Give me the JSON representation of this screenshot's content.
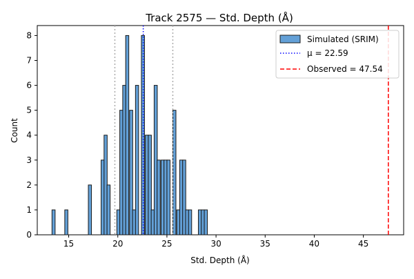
{
  "chart_data": {
    "type": "bar",
    "title": "Track 2575 — Std. Depth (Å)",
    "xlabel": "Std. Depth (Å)",
    "ylabel": "Count",
    "xlim": [
      11.8,
      49.1
    ],
    "ylim": [
      0,
      8.4
    ],
    "xticks": [
      15,
      20,
      25,
      30,
      35,
      40,
      45
    ],
    "yticks": [
      0,
      1,
      2,
      3,
      4,
      5,
      6,
      7,
      8
    ],
    "bin_width": 0.318,
    "bins": [
      {
        "x": 13.3,
        "count": 1
      },
      {
        "x": 14.6,
        "count": 1
      },
      {
        "x": 17.0,
        "count": 2
      },
      {
        "x": 18.3,
        "count": 3
      },
      {
        "x": 18.6,
        "count": 4
      },
      {
        "x": 18.9,
        "count": 2
      },
      {
        "x": 19.9,
        "count": 1
      },
      {
        "x": 20.2,
        "count": 5
      },
      {
        "x": 20.5,
        "count": 6
      },
      {
        "x": 20.8,
        "count": 8
      },
      {
        "x": 21.2,
        "count": 5
      },
      {
        "x": 21.5,
        "count": 1
      },
      {
        "x": 21.8,
        "count": 6
      },
      {
        "x": 22.4,
        "count": 8
      },
      {
        "x": 22.8,
        "count": 4
      },
      {
        "x": 23.1,
        "count": 4
      },
      {
        "x": 23.4,
        "count": 1
      },
      {
        "x": 23.7,
        "count": 6
      },
      {
        "x": 24.0,
        "count": 3
      },
      {
        "x": 24.4,
        "count": 3
      },
      {
        "x": 24.7,
        "count": 3
      },
      {
        "x": 25.0,
        "count": 3
      },
      {
        "x": 25.6,
        "count": 5
      },
      {
        "x": 26.0,
        "count": 1
      },
      {
        "x": 26.3,
        "count": 3
      },
      {
        "x": 26.6,
        "count": 3
      },
      {
        "x": 26.9,
        "count": 1
      },
      {
        "x": 27.2,
        "count": 1
      },
      {
        "x": 28.2,
        "count": 1
      },
      {
        "x": 28.5,
        "count": 1
      },
      {
        "x": 28.8,
        "count": 1
      }
    ],
    "mean": 22.59,
    "std_lines": [
      19.7,
      25.6
    ],
    "observed": 47.54,
    "legend": {
      "position": "top-right",
      "entries": [
        {
          "label": "Simulated (SRIM)",
          "kind": "patch",
          "color": "#5b9bd5"
        },
        {
          "label": "μ = 22.59",
          "kind": "dotted",
          "color": "#0000ff"
        },
        {
          "label": "Observed = 47.54",
          "kind": "dashed",
          "color": "#ff0000"
        }
      ]
    },
    "colors": {
      "bar": "#5b9bd5",
      "mean": "#0000ff",
      "observed": "#ff0000",
      "std": "#aaaaaa"
    }
  }
}
